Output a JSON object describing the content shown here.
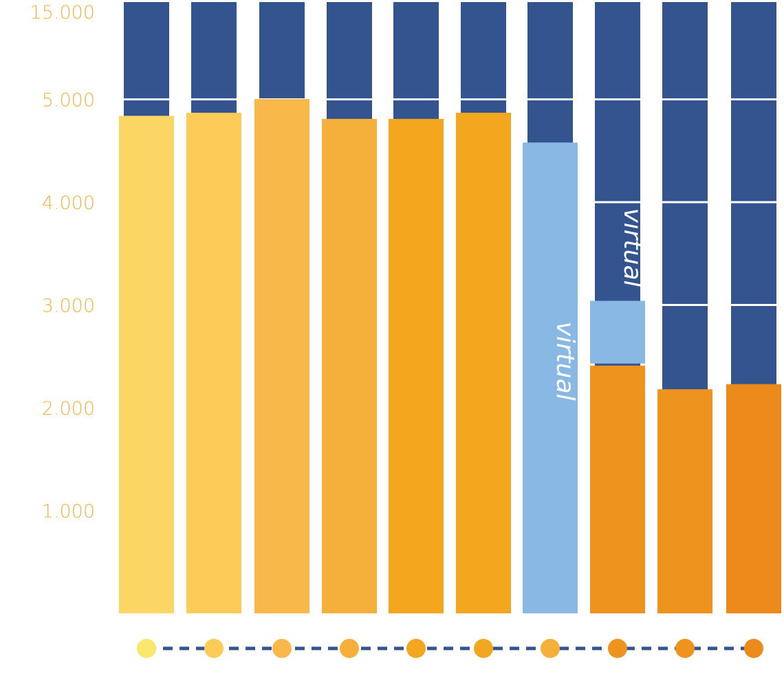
{
  "chart_data": {
    "type": "bar",
    "title": "",
    "xlabel": "",
    "ylabel": "",
    "yaxis_note": "broken axis: top band represents 5.000 to 15.000",
    "ylim": [
      0,
      15000
    ],
    "y_ticks": [
      {
        "value": 1000,
        "label": "1.000"
      },
      {
        "value": 2000,
        "label": "2.000"
      },
      {
        "value": 3000,
        "label": "3.000"
      },
      {
        "value": 4000,
        "label": "4.000"
      },
      {
        "value": 5000,
        "label": "5.000"
      },
      {
        "value": 15000,
        "label": "15.000"
      }
    ],
    "categories": [
      "",
      "",
      "",
      "",
      "",
      "",
      "",
      "",
      "",
      ""
    ],
    "values": [
      4840,
      4870,
      5030,
      4810,
      4810,
      4870,
      4580,
      2410,
      2180,
      2230
    ],
    "virtual_values": [
      null,
      null,
      null,
      null,
      null,
      null,
      4580,
      3040,
      null,
      null
    ],
    "bar_annotations": [
      "",
      "",
      "",
      "",
      "",
      "",
      "virtual",
      "virtual",
      "",
      ""
    ],
    "legend": "none",
    "grid": true,
    "colors": {
      "background_column": "#34548f",
      "grid": "#ffffff",
      "tick_label": "#f2b341",
      "virtual": "#8ab8e4",
      "annotation_text": "#ffffff",
      "timeline_line": "#34548f",
      "bars": [
        "#fcd664",
        "#fdcb58",
        "#f9b94a",
        "#f4b03a",
        "#f2a71f",
        "#f2a71f",
        "#8ab8e4",
        "#ee931d",
        "#ee931d",
        "#ec8a1b"
      ],
      "dots": [
        "#f9e76e",
        "#fdcb58",
        "#f9b94a",
        "#f4b03a",
        "#f2a71f",
        "#f2a71f",
        "#f4b03a",
        "#ee931d",
        "#ee931d",
        "#ec8a1b"
      ]
    }
  }
}
